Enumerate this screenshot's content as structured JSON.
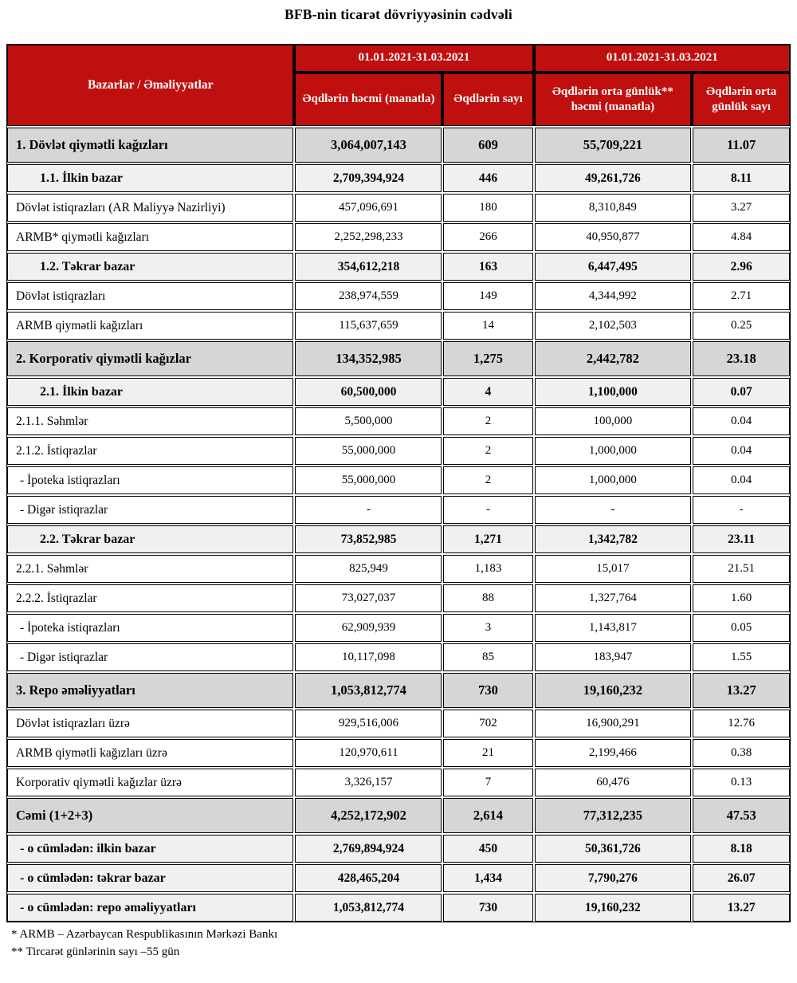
{
  "title": "BFB-nin ticarət dövriyyəsinin cədvəli",
  "colors": {
    "header_red": "#C00F0F",
    "section_gray": "#D6D6D6",
    "subsection_gray": "#F0F0F0"
  },
  "table": {
    "header": {
      "col_markets": "Bazarlar / Əməliyyatlar",
      "period_1": "01.01.2021-31.03.2021",
      "period_2": "01.01.2021-31.03.2021",
      "col_volume": "Əqdlərin həcmi (manatla)",
      "col_count": "Əqdlərin sayı",
      "col_avg_volume": "Əqdlərin orta günlük** həcmi (manatla)",
      "col_avg_count": "Əqdlərin orta günlük sayı"
    },
    "rows": [
      {
        "style": "section",
        "label": "1. Dövlət qiymətli kağızları",
        "volume": "3,064,007,143",
        "count": "609",
        "avg_volume": "55,709,221",
        "avg_count": "11.07"
      },
      {
        "style": "subsection",
        "label": "1.1. İlkin bazar",
        "volume": "2,709,394,924",
        "count": "446",
        "avg_volume": "49,261,726",
        "avg_count": "8.11"
      },
      {
        "style": "detail",
        "label": "Dövlət istiqrazları (AR Maliyyə Nazirliyi)",
        "volume": "457,096,691",
        "count": "180",
        "avg_volume": "8,310,849",
        "avg_count": "3.27"
      },
      {
        "style": "detail",
        "label": "ARMB* qiymətli kağızları",
        "volume": "2,252,298,233",
        "count": "266",
        "avg_volume": "40,950,877",
        "avg_count": "4.84"
      },
      {
        "style": "subsection",
        "label": "1.2. Təkrar bazar",
        "volume": "354,612,218",
        "count": "163",
        "avg_volume": "6,447,495",
        "avg_count": "2.96"
      },
      {
        "style": "detail",
        "label": "Dövlət istiqrazları",
        "volume": "238,974,559",
        "count": "149",
        "avg_volume": "4,344,992",
        "avg_count": "2.71"
      },
      {
        "style": "detail",
        "label": "ARMB qiymətli kağızları",
        "volume": "115,637,659",
        "count": "14",
        "avg_volume": "2,102,503",
        "avg_count": "0.25"
      },
      {
        "style": "section",
        "label": "2. Korporativ qiymətli kağızlar",
        "volume": "134,352,985",
        "count": "1,275",
        "avg_volume": "2,442,782",
        "avg_count": "23.18"
      },
      {
        "style": "subsection",
        "label": "2.1. İlkin bazar",
        "volume": "60,500,000",
        "count": "4",
        "avg_volume": "1,100,000",
        "avg_count": "0.07"
      },
      {
        "style": "detail",
        "label": "2.1.1. Səhmlər",
        "volume": "5,500,000",
        "count": "2",
        "avg_volume": "100,000",
        "avg_count": "0.04"
      },
      {
        "style": "detail",
        "label": "2.1.2. İstiqrazlar",
        "volume": "55,000,000",
        "count": "2",
        "avg_volume": "1,000,000",
        "avg_count": "0.04"
      },
      {
        "style": "dash",
        "label": "- İpoteka istiqrazları",
        "volume": "55,000,000",
        "count": "2",
        "avg_volume": "1,000,000",
        "avg_count": "0.04"
      },
      {
        "style": "dash",
        "label": "- Digər istiqrazlar",
        "volume": "-",
        "count": "-",
        "avg_volume": "-",
        "avg_count": "-"
      },
      {
        "style": "subsection",
        "label": "2.2. Təkrar bazar",
        "volume": "73,852,985",
        "count": "1,271",
        "avg_volume": "1,342,782",
        "avg_count": "23.11"
      },
      {
        "style": "detail",
        "label": "2.2.1. Səhmlər",
        "volume": "825,949",
        "count": "1,183",
        "avg_volume": "15,017",
        "avg_count": "21.51"
      },
      {
        "style": "detail",
        "label": "2.2.2. İstiqrazlar",
        "volume": "73,027,037",
        "count": "88",
        "avg_volume": "1,327,764",
        "avg_count": "1.60"
      },
      {
        "style": "dash",
        "label": "- İpoteka istiqrazları",
        "volume": "62,909,939",
        "count": "3",
        "avg_volume": "1,143,817",
        "avg_count": "0.05"
      },
      {
        "style": "dash",
        "label": "- Digər istiqrazlar",
        "volume": "10,117,098",
        "count": "85",
        "avg_volume": "183,947",
        "avg_count": "1.55"
      },
      {
        "style": "section",
        "label": "3. Repo əməliyyatları",
        "volume": "1,053,812,774",
        "count": "730",
        "avg_volume": "19,160,232",
        "avg_count": "13.27"
      },
      {
        "style": "detail",
        "label": "Dövlət istiqrazları üzrə",
        "volume": "929,516,006",
        "count": "702",
        "avg_volume": "16,900,291",
        "avg_count": "12.76"
      },
      {
        "style": "detail",
        "label": "ARMB qiymətli kağızları üzrə",
        "volume": "120,970,611",
        "count": "21",
        "avg_volume": "2,199,466",
        "avg_count": "0.38"
      },
      {
        "style": "detail",
        "label": "Korporativ qiymətli kağızlar üzrə",
        "volume": "3,326,157",
        "count": "7",
        "avg_volume": "60,476",
        "avg_count": "0.13"
      },
      {
        "style": "section",
        "label": "Cəmi (1+2+3)",
        "volume": "4,252,172,902",
        "count": "2,614",
        "avg_volume": "77,312,235",
        "avg_count": "47.53"
      },
      {
        "style": "totalsub",
        "label": "- o cümlədən: ilkin bazar",
        "volume": "2,769,894,924",
        "count": "450",
        "avg_volume": "50,361,726",
        "avg_count": "8.18"
      },
      {
        "style": "totalsub",
        "label": "- o cümlədən: təkrar bazar",
        "volume": "428,465,204",
        "count": "1,434",
        "avg_volume": "7,790,276",
        "avg_count": "26.07"
      },
      {
        "style": "totalsub",
        "label": "- o cümlədən: repo əməliyyatları",
        "volume": "1,053,812,774",
        "count": "730",
        "avg_volume": "19,160,232",
        "avg_count": "13.27"
      }
    ]
  },
  "footnotes": [
    "* ARMB – Azərbaycan Respublikasının Mərkəzi Bankı",
    "** Tircarət günlərinin sayı –55 gün"
  ]
}
